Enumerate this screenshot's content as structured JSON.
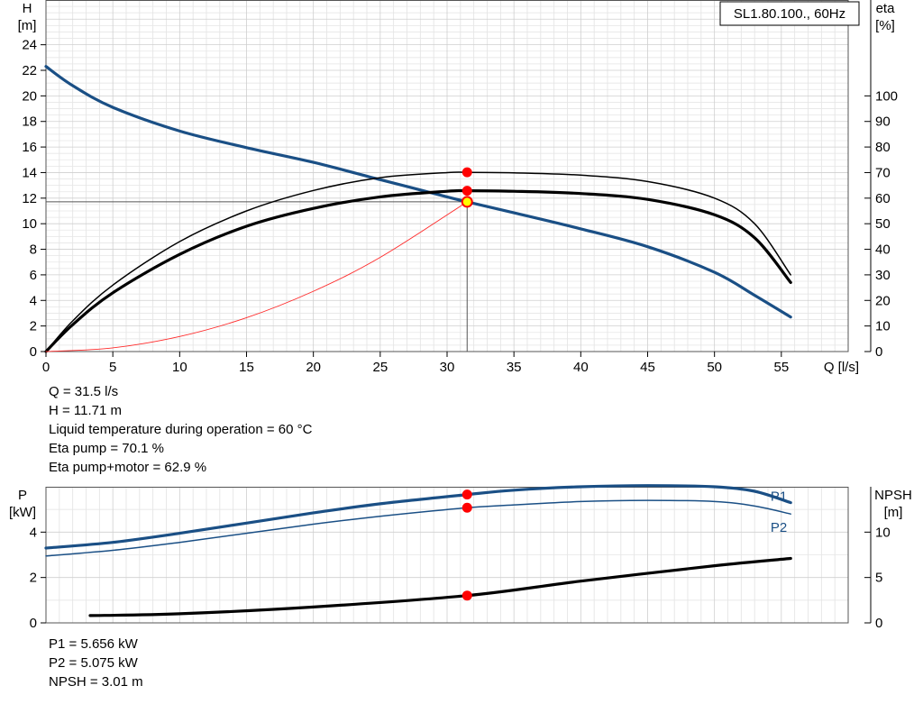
{
  "chart_data": [
    {
      "type": "line",
      "title": "SL1.80.100., 60Hz",
      "x_axis": {
        "label": "Q [l/s]",
        "range": [
          0,
          60
        ],
        "ticks": [
          0,
          5,
          10,
          15,
          20,
          25,
          30,
          35,
          40,
          45,
          50,
          55
        ]
      },
      "y_left": {
        "label_lines": [
          "H",
          "[m]"
        ],
        "range": [
          0,
          27.5
        ],
        "ticks": [
          0,
          2,
          4,
          6,
          8,
          10,
          12,
          14,
          16,
          18,
          20,
          22,
          24
        ]
      },
      "y_right": {
        "label_lines": [
          "eta",
          "[%]"
        ],
        "range": [
          0,
          137.5
        ],
        "ticks": [
          0,
          10,
          20,
          30,
          40,
          50,
          60,
          70,
          80,
          90,
          100
        ]
      },
      "grid": true,
      "series": [
        {
          "axis": "left",
          "color": "#1a4f85",
          "width": 3.2,
          "x": [
            0,
            2,
            5,
            10,
            15,
            20,
            25,
            30,
            31.5,
            35,
            40,
            45,
            50,
            53,
            55.7
          ],
          "y": [
            22.3,
            20.8,
            19.1,
            17.25,
            15.95,
            14.8,
            13.45,
            12.1,
            11.71,
            10.85,
            9.6,
            8.2,
            6.2,
            4.4,
            2.7
          ]
        },
        {
          "axis": "right",
          "color": "#000000",
          "width": 1.5,
          "x": [
            0,
            2,
            5,
            10,
            15,
            20,
            25,
            30,
            31.5,
            35,
            40,
            45,
            50,
            53,
            55.7
          ],
          "y": [
            0,
            12,
            26,
            43,
            55,
            63,
            68,
            70,
            70.1,
            69.9,
            69,
            66.5,
            60,
            50,
            30
          ]
        },
        {
          "axis": "right",
          "color": "#000000",
          "width": 3.2,
          "x": [
            0,
            2,
            5,
            10,
            15,
            20,
            25,
            30,
            31.5,
            35,
            40,
            45,
            50,
            53,
            55.7
          ],
          "y": [
            0,
            10.5,
            23,
            38,
            49,
            56,
            60.5,
            62.7,
            62.9,
            62.7,
            61.8,
            59.5,
            53.5,
            44.5,
            27
          ]
        },
        {
          "axis": "left",
          "color": "#ff2a2a",
          "width": 0.9,
          "kind": "system-curve",
          "x": [
            0,
            5,
            10,
            15,
            20,
            25,
            31.5
          ],
          "y": [
            0,
            0.29,
            1.18,
            2.65,
            4.72,
            7.37,
            11.71
          ]
        }
      ],
      "crosshair": {
        "x": 31.5,
        "y": 11.71
      },
      "points": [
        {
          "x": 31.5,
          "y": 70.1,
          "axis": "right",
          "color": "#ff0000"
        },
        {
          "x": 31.5,
          "y": 62.9,
          "axis": "right",
          "color": "#ff0000"
        },
        {
          "x": 31.5,
          "y": 11.71,
          "axis": "left",
          "color": "#ffff00"
        }
      ]
    },
    {
      "type": "line",
      "x_axis": {
        "range": [
          0,
          60
        ]
      },
      "y_left": {
        "label_lines": [
          "P",
          "[kW]"
        ],
        "range": [
          0,
          6
        ],
        "ticks": [
          0,
          2,
          4
        ]
      },
      "y_right": {
        "label_lines": [
          "NPSH",
          "[m]"
        ],
        "range": [
          0,
          15
        ],
        "ticks": [
          0,
          5,
          10
        ]
      },
      "grid": true,
      "series": [
        {
          "name": "P1",
          "axis": "left",
          "color": "#1a4f85",
          "width": 3.2,
          "x": [
            0,
            5,
            10,
            15,
            20,
            25,
            31.5,
            35,
            40,
            45,
            50,
            53,
            55.7
          ],
          "y": [
            3.3,
            3.55,
            3.95,
            4.4,
            4.85,
            5.25,
            5.656,
            5.85,
            6.0,
            6.05,
            6.0,
            5.8,
            5.3
          ]
        },
        {
          "name": "P2",
          "axis": "left",
          "color": "#1a4f85",
          "width": 1.5,
          "x": [
            0,
            5,
            10,
            15,
            20,
            25,
            31.5,
            35,
            40,
            45,
            50,
            53,
            55.7
          ],
          "y": [
            2.95,
            3.2,
            3.55,
            3.95,
            4.35,
            4.7,
            5.075,
            5.2,
            5.35,
            5.4,
            5.35,
            5.15,
            4.8
          ]
        },
        {
          "axis": "right",
          "color": "#000000",
          "width": 3.2,
          "x": [
            3.3,
            10,
            20,
            31.5,
            40,
            50,
            55.7
          ],
          "y": [
            0.8,
            1.0,
            1.75,
            3.01,
            4.6,
            6.3,
            7.1
          ]
        }
      ],
      "points": [
        {
          "x": 31.5,
          "y": 5.656,
          "axis": "left",
          "color": "#ff0000"
        },
        {
          "x": 31.5,
          "y": 5.075,
          "axis": "left",
          "color": "#ff0000"
        },
        {
          "x": 31.5,
          "y": 3.01,
          "axis": "right",
          "color": "#ff0000"
        }
      ]
    }
  ],
  "operating_point": [
    "Q = 31.5 l/s",
    "H = 11.71 m",
    "Liquid temperature during operation = 60 °C",
    "Eta pump = 70.1 %",
    "Eta pump+motor = 62.9 %"
  ],
  "power_npsh": [
    "P1 = 5.656 kW",
    "P2 = 5.075 kW",
    "NPSH = 3.01 m"
  ]
}
